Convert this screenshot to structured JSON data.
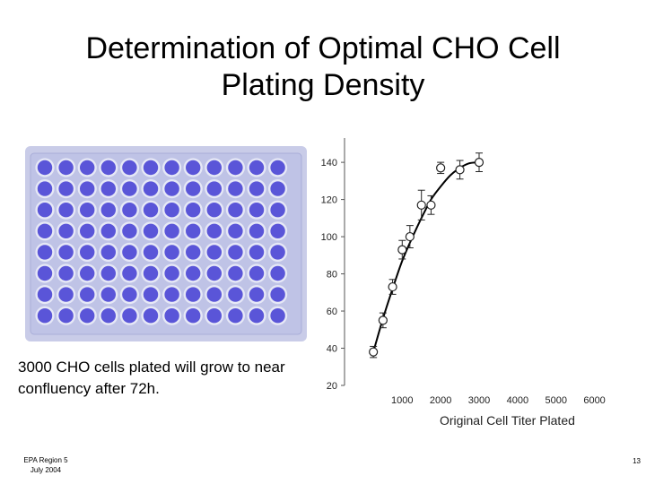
{
  "slide": {
    "title": "Determination of Optimal CHO Cell Plating Density",
    "caption": "3000 CHO cells plated will grow to near confluency after 72h.",
    "footer_line1": "EPA Region 5",
    "footer_line2": "July 2004",
    "page_number": "13"
  },
  "plate": {
    "rows": 8,
    "columns": 12,
    "well_color": "#5a55d8",
    "plate_color": "#c9cce8"
  },
  "chart_data": {
    "type": "scatter",
    "title": "",
    "xlabel": "Original Cell Titer Plated",
    "ylabel": "",
    "xlim": [
      -500,
      6500
    ],
    "ylim": [
      20,
      155
    ],
    "xticks": [
      "1000",
      "2000",
      "3000",
      "4000",
      "5000",
      "6000"
    ],
    "yticks": [
      "20",
      "40",
      "60",
      "80",
      "100",
      "120",
      "140"
    ],
    "series": [
      {
        "x": [
          250,
          500,
          750,
          1000,
          1200,
          1500,
          1750,
          2000,
          2500,
          3000
        ],
        "y": [
          38,
          55,
          73,
          93,
          100,
          117,
          117,
          137,
          136,
          140
        ],
        "err": [
          3,
          4,
          4,
          5,
          6,
          8,
          5,
          3,
          5,
          5
        ]
      }
    ],
    "fit_curve": {
      "x": [
        250,
        500,
        750,
        1000,
        1250,
        1500,
        1750,
        2000,
        2250,
        2500,
        2750,
        3000
      ],
      "y": [
        38,
        56,
        72,
        87,
        99,
        110,
        120,
        127,
        133,
        137,
        139.5,
        140
      ]
    },
    "grid": false,
    "legend": "none",
    "colors": {
      "marker": "#222222",
      "curve": "#000000"
    }
  }
}
